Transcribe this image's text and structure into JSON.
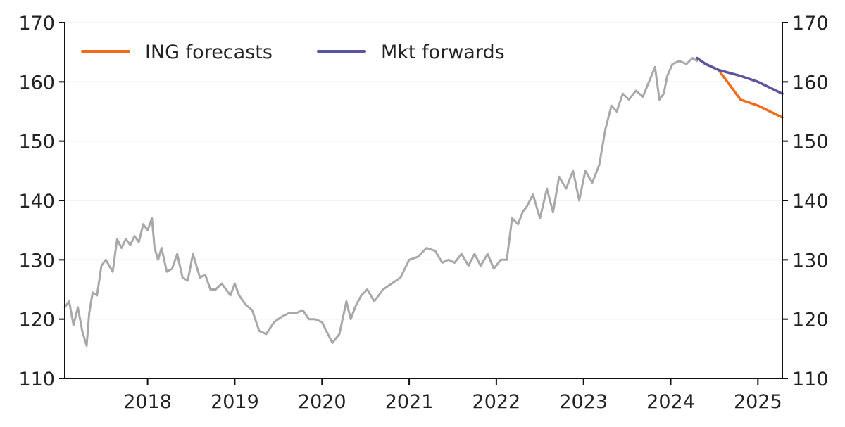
{
  "chart_data": {
    "type": "line",
    "title": "",
    "xlabel": "",
    "ylabel": "",
    "xlim": [
      2017.05,
      2025.28
    ],
    "ylim": [
      110,
      170
    ],
    "grid": true,
    "legend_position": "top-left",
    "y_ticks": [
      "110",
      "120",
      "130",
      "140",
      "150",
      "160",
      "170"
    ],
    "y_tick_values": [
      110,
      120,
      130,
      140,
      150,
      160,
      170
    ],
    "x_ticks": [
      "2018",
      "2019",
      "2020",
      "2021",
      "2022",
      "2023",
      "2024",
      "2025"
    ],
    "x_tick_values": [
      2018,
      2019,
      2020,
      2021,
      2022,
      2023,
      2024,
      2025
    ],
    "colors": {
      "history": "#a8a8a8",
      "ing_forecasts": "#f26b1d",
      "mkt_forwards": "#5b55a1",
      "axis": "#111111",
      "grid": "#ededed"
    },
    "series": [
      {
        "name": "",
        "key": "history",
        "x": [
          2017.05,
          2017.1,
          2017.15,
          2017.2,
          2017.25,
          2017.3,
          2017.33,
          2017.37,
          2017.42,
          2017.47,
          2017.52,
          2017.6,
          2017.65,
          2017.7,
          2017.75,
          2017.8,
          2017.85,
          2017.9,
          2017.95,
          2018.0,
          2018.05,
          2018.08,
          2018.12,
          2018.16,
          2018.22,
          2018.28,
          2018.34,
          2018.4,
          2018.46,
          2018.52,
          2018.6,
          2018.66,
          2018.72,
          2018.78,
          2018.85,
          2018.95,
          2019.0,
          2019.05,
          2019.12,
          2019.2,
          2019.28,
          2019.36,
          2019.45,
          2019.55,
          2019.62,
          2019.7,
          2019.78,
          2019.85,
          2019.92,
          2020.0,
          2020.05,
          2020.12,
          2020.2,
          2020.28,
          2020.33,
          2020.38,
          2020.45,
          2020.52,
          2020.6,
          2020.7,
          2020.8,
          2020.9,
          2021.0,
          2021.1,
          2021.2,
          2021.3,
          2021.38,
          2021.45,
          2021.52,
          2021.6,
          2021.68,
          2021.75,
          2021.82,
          2021.9,
          2021.97,
          2022.05,
          2022.12,
          2022.18,
          2022.25,
          2022.3,
          2022.35,
          2022.42,
          2022.5,
          2022.58,
          2022.65,
          2022.72,
          2022.8,
          2022.88,
          2022.95,
          2023.02,
          2023.1,
          2023.18,
          2023.25,
          2023.32,
          2023.38,
          2023.45,
          2023.52,
          2023.6,
          2023.68,
          2023.75,
          2023.82,
          2023.87,
          2023.92,
          2023.96,
          2024.02,
          2024.1,
          2024.18,
          2024.25,
          2024.3
        ],
        "values": [
          122,
          123,
          119,
          122,
          118,
          115.5,
          121,
          124.5,
          124,
          129,
          130,
          128,
          133.5,
          132,
          133.5,
          132.5,
          134,
          133,
          136,
          135,
          137,
          132,
          130,
          132,
          128,
          128.5,
          131,
          127,
          126.5,
          131,
          127,
          127.5,
          125,
          125,
          126,
          124,
          126,
          124,
          122.5,
          121.5,
          118,
          117.5,
          119.5,
          120.5,
          121,
          121,
          121.5,
          120,
          120,
          119.5,
          118,
          116,
          117.5,
          123,
          120,
          122,
          124,
          125,
          123,
          125,
          126,
          127,
          130,
          130.5,
          132,
          131.5,
          129.5,
          130,
          129.5,
          131,
          129,
          131,
          129,
          131,
          128.5,
          130,
          130,
          137,
          136,
          138,
          139,
          141,
          137,
          142,
          138,
          144,
          142,
          145,
          140,
          145,
          143,
          146,
          152,
          156,
          155,
          158,
          157,
          158.5,
          157.5,
          160,
          162.5,
          157,
          158,
          161,
          163,
          163.5,
          163,
          164,
          163.5
        ]
      },
      {
        "name": "ING forecasts",
        "key": "ing_forecasts",
        "x": [
          2024.3,
          2024.4,
          2024.55,
          2024.8,
          2025.0,
          2025.28
        ],
        "values": [
          164,
          163,
          162,
          157,
          156,
          154
        ]
      },
      {
        "name": "Mkt forwards",
        "key": "mkt_forwards",
        "x": [
          2024.3,
          2024.4,
          2024.55,
          2024.8,
          2025.0,
          2025.28
        ],
        "values": [
          164,
          163,
          162,
          161,
          160,
          158
        ]
      }
    ]
  }
}
